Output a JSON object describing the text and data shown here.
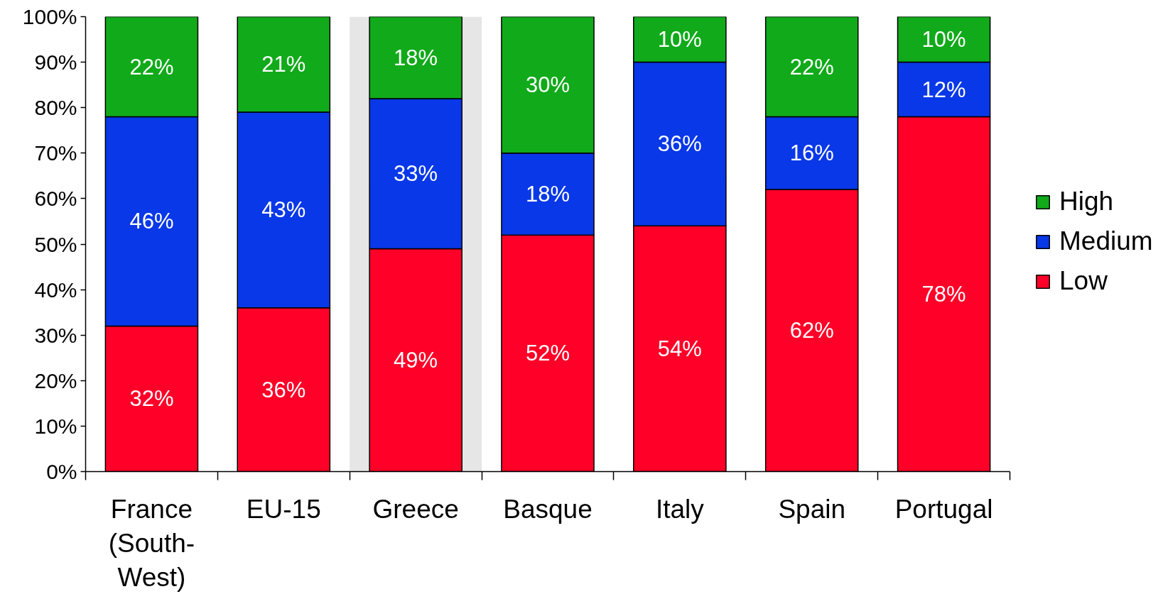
{
  "chart_data": {
    "type": "bar",
    "stacked": true,
    "categories": [
      "France (South-West)",
      "EU-15",
      "Greece",
      "Basque",
      "Italy",
      "Spain",
      "Portugal"
    ],
    "series": [
      {
        "name": "Low",
        "color": "#ff0028",
        "values": [
          32,
          36,
          49,
          52,
          54,
          62,
          78
        ],
        "value_labels": [
          "32%",
          "36%",
          "49%",
          "52%",
          "54%",
          "62%",
          "78%"
        ]
      },
      {
        "name": "Medium",
        "color": "#0838e8",
        "values": [
          46,
          43,
          33,
          18,
          36,
          16,
          12
        ],
        "value_labels": [
          "46%",
          "43%",
          "33%",
          "18%",
          "36%",
          "16%",
          "12%"
        ]
      },
      {
        "name": "High",
        "color": "#11aa1a",
        "values": [
          22,
          21,
          18,
          30,
          10,
          22,
          10
        ],
        "value_labels": [
          "22%",
          "21%",
          "18%",
          "30%",
          "10%",
          "22%",
          "10%"
        ]
      }
    ],
    "ylim": [
      0,
      100
    ],
    "yticks": [
      {
        "value": 0,
        "label": "0%"
      },
      {
        "value": 10,
        "label": "10%"
      },
      {
        "value": 20,
        "label": "20%"
      },
      {
        "value": 30,
        "label": "30%"
      },
      {
        "value": 40,
        "label": "40%"
      },
      {
        "value": 50,
        "label": "50%"
      },
      {
        "value": 60,
        "label": "60%"
      },
      {
        "value": 70,
        "label": "70%"
      },
      {
        "value": 80,
        "label": "80%"
      },
      {
        "value": 90,
        "label": "90%"
      },
      {
        "value": 100,
        "label": "100%"
      }
    ],
    "legend": "right",
    "bands": [
      {
        "axis": "x",
        "from": "Greece",
        "to": "Greece",
        "color": "#e6e6e6"
      }
    ]
  }
}
